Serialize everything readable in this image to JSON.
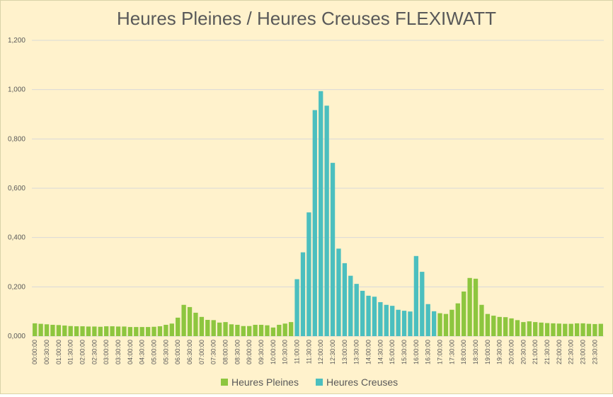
{
  "chart_data": {
    "type": "bar",
    "title": "Heures Pleines / Heures Creuses FLEXIWATT",
    "xlabel": "",
    "ylabel": "",
    "ylim": [
      0,
      1.2
    ],
    "yticks": [
      0,
      0.2,
      0.4,
      0.6,
      0.8,
      1.0,
      1.2
    ],
    "ytick_labels": [
      "0,000",
      "0,200",
      "0,400",
      "0,600",
      "0,800",
      "1,000",
      "1,200"
    ],
    "grid": true,
    "legend_position": "bottom",
    "colors": {
      "Heures Pleines": "#8dc63f",
      "Heures Creuses": "#4bbfbf"
    },
    "categories": [
      "00:00:00",
      "00:15:00",
      "00:30:00",
      "00:45:00",
      "01:00:00",
      "01:15:00",
      "01:30:00",
      "01:45:00",
      "02:00:00",
      "02:15:00",
      "02:30:00",
      "02:45:00",
      "03:00:00",
      "03:15:00",
      "03:30:00",
      "03:45:00",
      "04:00:00",
      "04:15:00",
      "04:30:00",
      "04:45:00",
      "05:00:00",
      "05:15:00",
      "05:30:00",
      "05:45:00",
      "06:00:00",
      "06:15:00",
      "06:30:00",
      "06:45:00",
      "07:00:00",
      "07:15:00",
      "07:30:00",
      "07:45:00",
      "08:00:00",
      "08:15:00",
      "08:30:00",
      "08:45:00",
      "09:00:00",
      "09:15:00",
      "09:30:00",
      "09:45:00",
      "10:00:00",
      "10:15:00",
      "10:30:00",
      "10:45:00",
      "11:00:00",
      "11:15:00",
      "11:30:00",
      "11:45:00",
      "12:00:00",
      "12:15:00",
      "12:30:00",
      "12:45:00",
      "13:00:00",
      "13:15:00",
      "13:30:00",
      "13:45:00",
      "14:00:00",
      "14:15:00",
      "14:30:00",
      "14:45:00",
      "15:00:00",
      "15:15:00",
      "15:30:00",
      "15:45:00",
      "16:00:00",
      "16:15:00",
      "16:30:00",
      "16:45:00",
      "17:00:00",
      "17:15:00",
      "17:30:00",
      "17:45:00",
      "18:00:00",
      "18:15:00",
      "18:30:00",
      "18:45:00",
      "19:00:00",
      "19:15:00",
      "19:30:00",
      "19:45:00",
      "20:00:00",
      "20:15:00",
      "20:30:00",
      "20:45:00",
      "21:00:00",
      "21:15:00",
      "21:30:00",
      "21:45:00",
      "22:00:00",
      "22:15:00",
      "22:30:00",
      "22:45:00",
      "23:00:00",
      "23:15:00",
      "23:30:00",
      "23:45:00"
    ],
    "xtick_labels": [
      "00:00:00",
      "00:30:00",
      "01:00:00",
      "01:30:00",
      "02:00:00",
      "02:30:00",
      "03:00:00",
      "03:30:00",
      "04:00:00",
      "04:30:00",
      "05:00:00",
      "05:30:00",
      "06:00:00",
      "06:30:00",
      "07:00:00",
      "07:30:00",
      "08:00:00",
      "08:30:00",
      "09:00:00",
      "09:30:00",
      "10:00:00",
      "10:30:00",
      "11:00:00",
      "11:30:00",
      "12:00:00",
      "12:30:00",
      "13:00:00",
      "13:30:00",
      "14:00:00",
      "14:30:00",
      "15:00:00",
      "15:30:00",
      "16:00:00",
      "16:30:00",
      "17:00:00",
      "17:30:00",
      "18:00:00",
      "18:30:00",
      "19:00:00",
      "19:30:00",
      "20:00:00",
      "20:30:00",
      "21:00:00",
      "21:30:00",
      "22:00:00",
      "22:30:00",
      "23:00:00",
      "23:30:00"
    ],
    "series": [
      {
        "name": "Heures Pleines",
        "values": [
          0.052,
          0.05,
          0.048,
          0.046,
          0.045,
          0.043,
          0.041,
          0.04,
          0.04,
          0.039,
          0.039,
          0.038,
          0.04,
          0.04,
          0.039,
          0.039,
          0.037,
          0.037,
          0.037,
          0.037,
          0.038,
          0.04,
          0.046,
          0.051,
          0.075,
          0.127,
          0.118,
          0.095,
          0.078,
          0.066,
          0.065,
          0.055,
          0.057,
          0.048,
          0.046,
          0.041,
          0.041,
          0.046,
          0.046,
          0.044,
          0.035,
          0.046,
          0.051,
          0.057,
          null,
          null,
          null,
          null,
          null,
          null,
          null,
          null,
          null,
          null,
          null,
          null,
          null,
          null,
          null,
          null,
          null,
          null,
          null,
          null,
          null,
          null,
          null,
          null,
          0.093,
          0.09,
          0.107,
          0.133,
          0.181,
          0.236,
          0.233,
          0.127,
          0.09,
          0.083,
          0.078,
          0.077,
          0.072,
          0.065,
          0.057,
          0.06,
          0.057,
          0.055,
          0.053,
          0.052,
          0.051,
          0.05,
          0.05,
          0.052,
          0.052,
          0.05,
          0.049,
          0.05
        ]
      },
      {
        "name": "Heures Creuses",
        "values": [
          null,
          null,
          null,
          null,
          null,
          null,
          null,
          null,
          null,
          null,
          null,
          null,
          null,
          null,
          null,
          null,
          null,
          null,
          null,
          null,
          null,
          null,
          null,
          null,
          null,
          null,
          null,
          null,
          null,
          null,
          null,
          null,
          null,
          null,
          null,
          null,
          null,
          null,
          null,
          null,
          null,
          null,
          null,
          null,
          0.231,
          0.34,
          0.502,
          0.917,
          0.994,
          0.935,
          0.703,
          0.355,
          0.296,
          0.245,
          0.212,
          0.184,
          0.164,
          0.16,
          0.138,
          0.127,
          0.123,
          0.107,
          0.103,
          0.1,
          0.325,
          0.261,
          0.13,
          0.101,
          null,
          null,
          null,
          null,
          null,
          null,
          null,
          null,
          null,
          null,
          null,
          null,
          null,
          null,
          null,
          null,
          null,
          null,
          null,
          null,
          null,
          null,
          null,
          null,
          null,
          null,
          null,
          null
        ]
      }
    ]
  }
}
